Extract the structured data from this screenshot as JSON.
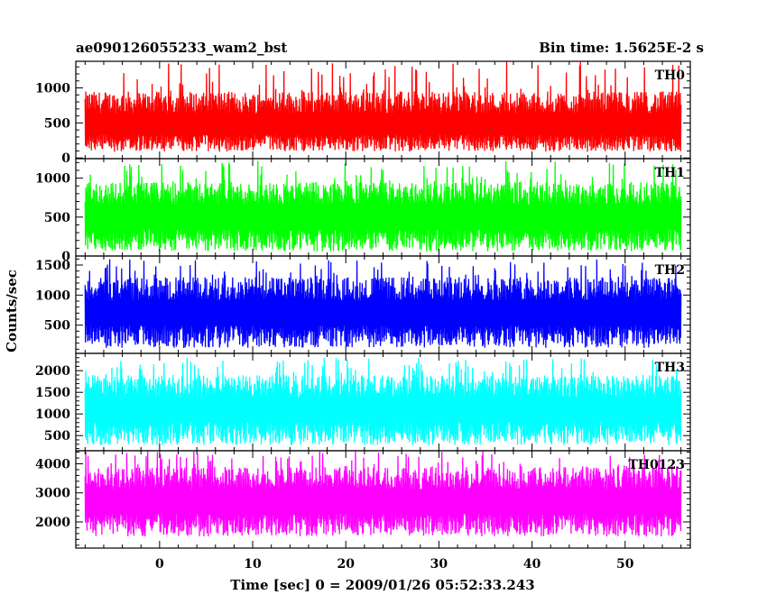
{
  "chart_data": {
    "type": "line",
    "title_left": "ae090126055233_wam2_bst",
    "title_right": "Bin time: 1.5625E-2 s",
    "ylabel": "Counts/sec",
    "xlabel": "Time [sec] 0 = 2009/01/26 05:52:33.243",
    "xlim": [
      -9,
      57
    ],
    "x_data_range": [
      -8,
      56
    ],
    "x_major_ticks": [
      0,
      10,
      20,
      30,
      40,
      50
    ],
    "x_minor_step": 2,
    "panels": [
      {
        "name": "TH0",
        "color": "#ff0000",
        "ylim": [
          -10,
          1380
        ],
        "y_major_ticks": [
          0,
          500,
          1000
        ],
        "y_minor_step": 100,
        "mean": 460,
        "low_envelope": 90,
        "high_envelope": 950,
        "max_peak": 1380
      },
      {
        "name": "TH1",
        "color": "#00ff00",
        "ylim": [
          0,
          1250
        ],
        "y_major_ticks": [
          0,
          500,
          1000
        ],
        "y_minor_step": 100,
        "mean": 500,
        "low_envelope": 60,
        "high_envelope": 950,
        "max_peak": 1240
      },
      {
        "name": "TH2",
        "color": "#0000ff",
        "ylim": [
          30,
          1650
        ],
        "y_major_ticks": [
          500,
          1000,
          1500
        ],
        "y_minor_step": 100,
        "mean": 700,
        "low_envelope": 120,
        "high_envelope": 1300,
        "max_peak": 1600
      },
      {
        "name": "TH3",
        "color": "#00ffff",
        "ylim": [
          150,
          2400
        ],
        "y_major_ticks": [
          500,
          1000,
          1500,
          2000
        ],
        "y_minor_step": 100,
        "mean": 1100,
        "low_envelope": 280,
        "high_envelope": 1900,
        "max_peak": 2300
      },
      {
        "name": "TH0123",
        "color": "#ff00ff",
        "ylim": [
          1100,
          4450
        ],
        "y_major_ticks": [
          2000,
          3000,
          4000
        ],
        "y_minor_step": 200,
        "mean": 2700,
        "low_envelope": 1500,
        "high_envelope": 3900,
        "max_peak": 4450
      }
    ]
  }
}
